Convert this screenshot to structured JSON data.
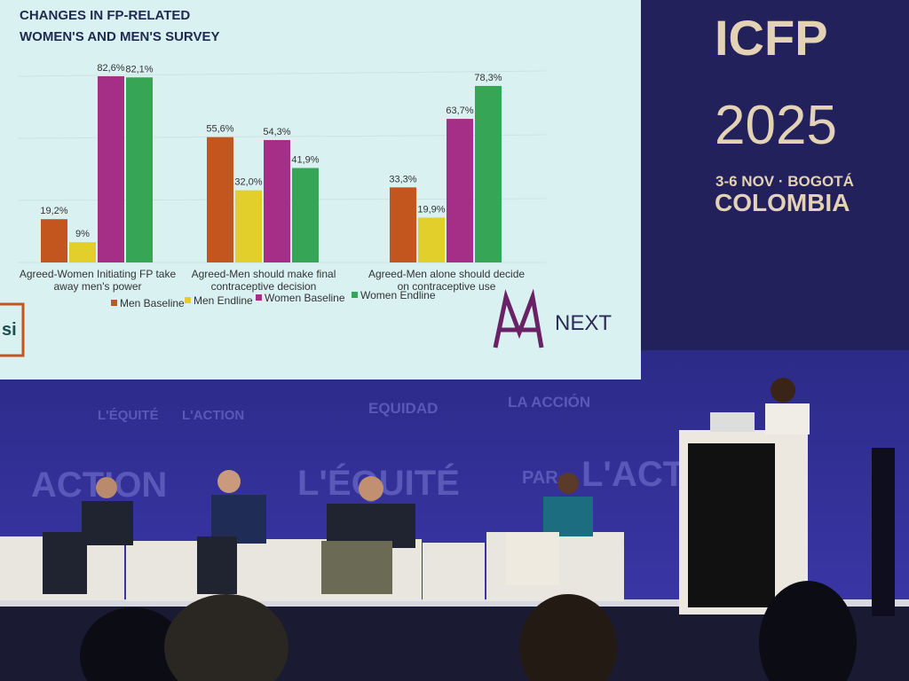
{
  "chart_data": {
    "type": "bar",
    "title": "CHANGES IN FP-RELATED",
    "subtitle": "WOMEN'S AND MEN'S SURVEY",
    "categories": [
      "Agreed-Women Initiating  FP take away men's power",
      "Agreed-Men should make final contraceptive decision",
      "Agreed-Men alone should decide on contraceptive use"
    ],
    "series": [
      {
        "name": "Men Baseline",
        "color": "#c2561e",
        "values": [
          19.2,
          55.6,
          33.3
        ],
        "value_labels": [
          "19,2%",
          "55,6%",
          "33,3%"
        ]
      },
      {
        "name": "Men Endline",
        "color": "#e3cf2b",
        "values": [
          9,
          32.0,
          19.9
        ],
        "value_labels": [
          "9%",
          "32,0%",
          "19,9%"
        ]
      },
      {
        "name": "Women Baseline",
        "color": "#a52f87",
        "values": [
          82.6,
          54.3,
          63.7
        ],
        "value_labels": [
          "82,6%",
          "54,3%",
          "63,7%"
        ]
      },
      {
        "name": "Women Endline",
        "color": "#36a656",
        "values": [
          82.1,
          41.9,
          78.3
        ],
        "value_labels": [
          "82,1%",
          "41,9%",
          "78,3%"
        ]
      }
    ],
    "logo_left": "si",
    "logo_right": "NEXT"
  },
  "banner": {
    "name": "ICFP",
    "year": "2025",
    "dates": "3-6 NOV · BOGOTÁ",
    "country": "COLOMBIA"
  },
  "backdrop": [
    "L'ÉQUITÉ",
    "L'ACTION",
    "EQUIDAD",
    "LA ACCIÓN",
    "ACTION",
    "L'ÉQUITÉ",
    "PAR",
    "L'ACTION"
  ]
}
